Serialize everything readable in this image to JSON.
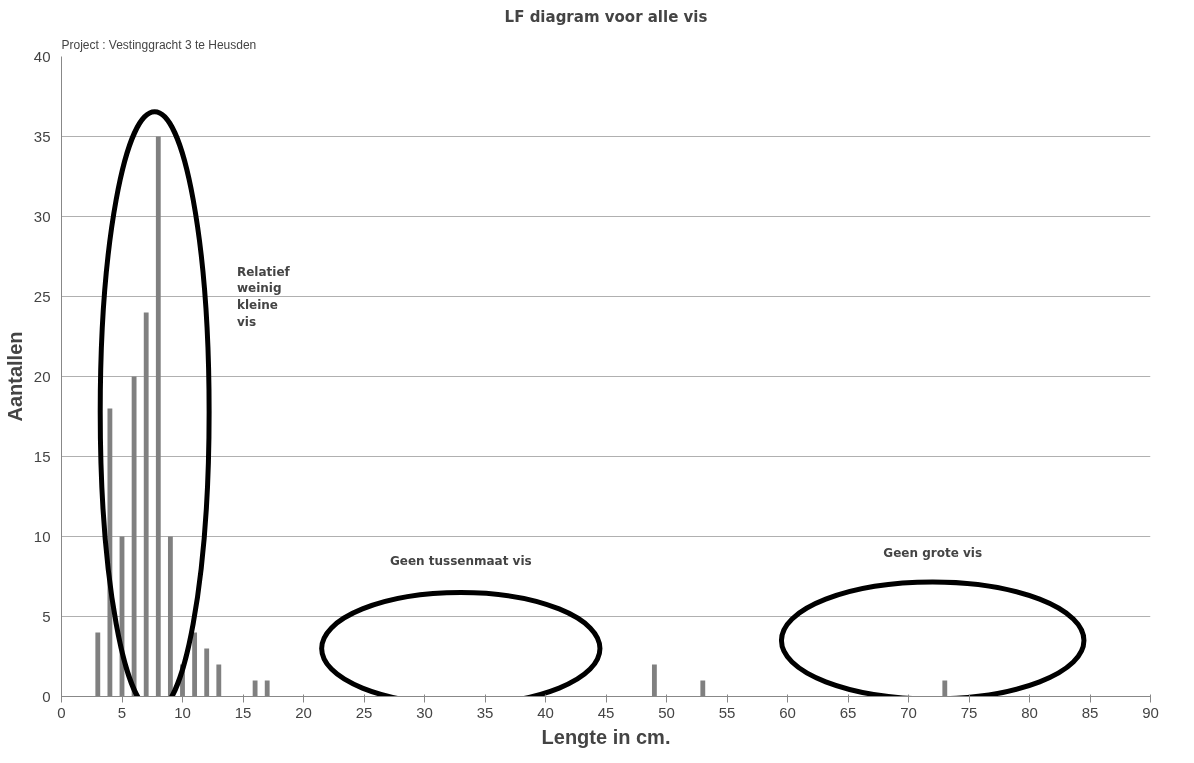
{
  "chart_data": {
    "type": "bar",
    "title": "LF diagram voor alle vis",
    "subtitle": "Project : Vestinggracht 3 te Heusden",
    "xlabel": "Lengte in cm.",
    "ylabel": "Aantallen",
    "x": [
      3,
      4,
      5,
      6,
      7,
      8,
      9,
      10,
      11,
      12,
      13,
      16,
      17,
      49,
      53,
      73
    ],
    "values": [
      4,
      18,
      10,
      20,
      24,
      35,
      10,
      2,
      4,
      3,
      2,
      1,
      1,
      2,
      1,
      1
    ],
    "color": "#808080",
    "xlim": [
      0,
      90
    ],
    "xticks": [
      0,
      5,
      10,
      15,
      20,
      25,
      30,
      35,
      40,
      45,
      50,
      55,
      60,
      65,
      70,
      75,
      80,
      85,
      90
    ],
    "ylim": [
      0,
      40
    ],
    "yticks": [
      0,
      5,
      10,
      15,
      20,
      25,
      30,
      35,
      40
    ],
    "grid": "y",
    "annotations": [
      "Relatief weinig kleine vis",
      "Geen tussenmaat vis",
      "Geen grote vis"
    ]
  }
}
